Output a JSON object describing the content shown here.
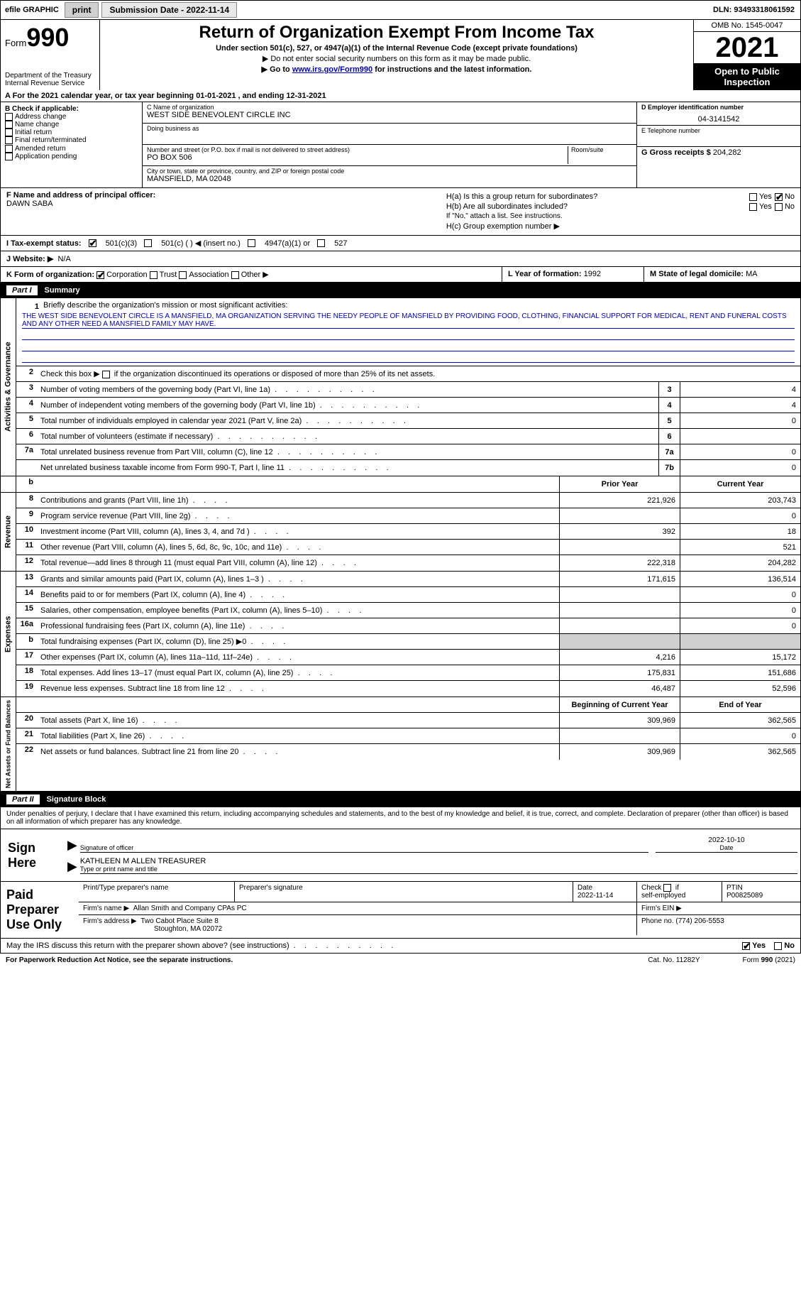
{
  "topbar": {
    "efile_label": "efile GRAPHIC",
    "print_btn": "print",
    "submission_label": "Submission Date - 2022-11-14",
    "dln": "DLN: 93493318061592"
  },
  "header": {
    "form_label": "Form",
    "form_number": "990",
    "dept": "Department of the Treasury",
    "irs": "Internal Revenue Service",
    "title": "Return of Organization Exempt From Income Tax",
    "subtitle": "Under section 501(c), 527, or 4947(a)(1) of the Internal Revenue Code (except private foundations)",
    "note1": "▶ Do not enter social security numbers on this form as it may be made public.",
    "note2_pre": "▶ Go to ",
    "note2_link": "www.irs.gov/Form990",
    "note2_post": " for instructions and the latest information.",
    "omb": "OMB No. 1545-0047",
    "year": "2021",
    "inspection": "Open to Public Inspection"
  },
  "period": "A For the 2021 calendar year, or tax year beginning 01-01-2021    , and ending 12-31-2021",
  "box_b": {
    "header": "B Check if applicable:",
    "opts": [
      "Address change",
      "Name change",
      "Initial return",
      "Final return/terminated",
      "Amended return",
      "Application pending"
    ]
  },
  "box_c": {
    "name_label": "C Name of organization",
    "name": "WEST SIDE BENEVOLENT CIRCLE INC",
    "dba_label": "Doing business as",
    "dba": "",
    "street_label": "Number and street (or P.O. box if mail is not delivered to street address)",
    "room_label": "Room/suite",
    "street": "PO BOX 506",
    "city_label": "City or town, state or province, country, and ZIP or foreign postal code",
    "city": "MANSFIELD, MA  02048"
  },
  "box_d": {
    "label": "D Employer identification number",
    "value": "04-3141542"
  },
  "box_e": {
    "label": "E Telephone number",
    "value": ""
  },
  "box_g": {
    "label": "G Gross receipts $",
    "value": "204,282"
  },
  "box_f": {
    "label": "F Name and address of principal officer:",
    "name": "DAWN SABA"
  },
  "box_h": {
    "ha_label": "H(a)  Is this a group return for subordinates?",
    "hb_label": "H(b)  Are all subordinates included?",
    "hb_note": "If \"No,\" attach a list. See instructions.",
    "hc_label": "H(c)  Group exemption number ▶",
    "yes": "Yes",
    "no": "No"
  },
  "box_i": {
    "label": "I   Tax-exempt status:",
    "o1": "501(c)(3)",
    "o2": "501(c) (  ) ◀ (insert no.)",
    "o3": "4947(a)(1) or",
    "o4": "527"
  },
  "box_j": {
    "label": "J   Website: ▶",
    "value": "N/A"
  },
  "box_k": {
    "label": "K Form of organization:",
    "o1": "Corporation",
    "o2": "Trust",
    "o3": "Association",
    "o4": "Other ▶"
  },
  "box_l": {
    "label": "L Year of formation:",
    "value": "1992"
  },
  "box_m": {
    "label": "M State of legal domicile:",
    "value": "MA"
  },
  "part1": {
    "tag": "Part I",
    "title": "Summary",
    "line1_label": "Briefly describe the organization's mission or most significant activities:",
    "mission": "THE WEST SIDE BENEVOLENT CIRCLE IS A MANSFIELD, MA ORGANIZATION SERVING THE NEEDY PEOPLE OF MANSFIELD BY PROVIDING FOOD, CLOTHING, FINANCIAL SUPPORT FOR MEDICAL, RENT AND FUNERAL COSTS AND ANY OTHER NEED A MANSFIELD FAMILY MAY HAVE.",
    "line2": "Check this box ▶      if the organization discontinued its operations or disposed of more than 25% of its net assets.",
    "vtab_ag": "Activities & Governance",
    "vtab_rev": "Revenue",
    "vtab_exp": "Expenses",
    "vtab_na": "Net Assets or Fund Balances",
    "rows_top": [
      {
        "n": "3",
        "t": "Number of voting members of the governing body (Part VI, line 1a)",
        "box": "3",
        "v": "4"
      },
      {
        "n": "4",
        "t": "Number of independent voting members of the governing body (Part VI, line 1b)",
        "box": "4",
        "v": "4"
      },
      {
        "n": "5",
        "t": "Total number of individuals employed in calendar year 2021 (Part V, line 2a)",
        "box": "5",
        "v": "0"
      },
      {
        "n": "6",
        "t": "Total number of volunteers (estimate if necessary)",
        "box": "6",
        "v": ""
      },
      {
        "n": "7a",
        "t": "Total unrelated business revenue from Part VIII, column (C), line 12",
        "box": "7a",
        "v": "0"
      },
      {
        "n": "",
        "t": "Net unrelated business taxable income from Form 990-T, Part I, line 11",
        "box": "7b",
        "v": "0"
      }
    ],
    "prior_hdr": "Prior Year",
    "curr_hdr": "Current Year",
    "rows_rev": [
      {
        "n": "8",
        "t": "Contributions and grants (Part VIII, line 1h)",
        "p": "221,926",
        "c": "203,743"
      },
      {
        "n": "9",
        "t": "Program service revenue (Part VIII, line 2g)",
        "p": "",
        "c": "0"
      },
      {
        "n": "10",
        "t": "Investment income (Part VIII, column (A), lines 3, 4, and 7d )",
        "p": "392",
        "c": "18"
      },
      {
        "n": "11",
        "t": "Other revenue (Part VIII, column (A), lines 5, 6d, 8c, 9c, 10c, and 11e)",
        "p": "",
        "c": "521"
      },
      {
        "n": "12",
        "t": "Total revenue—add lines 8 through 11 (must equal Part VIII, column (A), line 12)",
        "p": "222,318",
        "c": "204,282"
      }
    ],
    "rows_exp": [
      {
        "n": "13",
        "t": "Grants and similar amounts paid (Part IX, column (A), lines 1–3 )",
        "p": "171,615",
        "c": "136,514"
      },
      {
        "n": "14",
        "t": "Benefits paid to or for members (Part IX, column (A), line 4)",
        "p": "",
        "c": "0"
      },
      {
        "n": "15",
        "t": "Salaries, other compensation, employee benefits (Part IX, column (A), lines 5–10)",
        "p": "",
        "c": "0"
      },
      {
        "n": "16a",
        "t": "Professional fundraising fees (Part IX, column (A), line 11e)",
        "p": "",
        "c": "0"
      },
      {
        "n": "b",
        "t": "Total fundraising expenses (Part IX, column (D), line 25) ▶0",
        "p": "shade",
        "c": "shade"
      },
      {
        "n": "17",
        "t": "Other expenses (Part IX, column (A), lines 11a–11d, 11f–24e)",
        "p": "4,216",
        "c": "15,172"
      },
      {
        "n": "18",
        "t": "Total expenses. Add lines 13–17 (must equal Part IX, column (A), line 25)",
        "p": "175,831",
        "c": "151,686"
      },
      {
        "n": "19",
        "t": "Revenue less expenses. Subtract line 18 from line 12",
        "p": "46,487",
        "c": "52,596"
      }
    ],
    "beg_hdr": "Beginning of Current Year",
    "end_hdr": "End of Year",
    "rows_na": [
      {
        "n": "20",
        "t": "Total assets (Part X, line 16)",
        "p": "309,969",
        "c": "362,565"
      },
      {
        "n": "21",
        "t": "Total liabilities (Part X, line 26)",
        "p": "",
        "c": "0"
      },
      {
        "n": "22",
        "t": "Net assets or fund balances. Subtract line 21 from line 20",
        "p": "309,969",
        "c": "362,565"
      }
    ]
  },
  "part2": {
    "tag": "Part II",
    "title": "Signature Block",
    "decl": "Under penalties of perjury, I declare that I have examined this return, including accompanying schedules and statements, and to the best of my knowledge and belief, it is true, correct, and complete. Declaration of preparer (other than officer) is based on all information of which preparer has any knowledge.",
    "sign_here": "Sign Here",
    "sig_officer_lbl": "Signature of officer",
    "sig_date": "2022-10-10",
    "date_lbl": "Date",
    "name_title": "KATHLEEN M ALLEN  TREASURER",
    "name_title_lbl": "Type or print name and title",
    "paid": "Paid Preparer Use Only",
    "prep_name_lbl": "Print/Type preparer's name",
    "prep_sig_lbl": "Preparer's signature",
    "prep_date_lbl": "Date",
    "prep_date": "2022-11-14",
    "check_lbl": "Check        if self-employed",
    "ptin_lbl": "PTIN",
    "ptin": "P00825089",
    "firm_name_lbl": "Firm's name    ▶",
    "firm_name": "Allan Smith and Company CPAs PC",
    "firm_ein_lbl": "Firm's EIN ▶",
    "firm_addr_lbl": "Firm's address ▶",
    "firm_addr1": "Two Cabot Place Suite 8",
    "firm_addr2": "Stoughton, MA  02072",
    "phone_lbl": "Phone no.",
    "phone": "(774) 206-5553",
    "discuss": "May the IRS discuss this return with the preparer shown above? (see instructions)",
    "yes": "Yes",
    "no": "No"
  },
  "footer": {
    "pra": "For Paperwork Reduction Act Notice, see the separate instructions.",
    "cat": "Cat. No. 11282Y",
    "form": "Form 990 (2021)"
  },
  "colors": {
    "link": "#0000cc",
    "shade": "#d0d0d0",
    "black": "#000000"
  }
}
